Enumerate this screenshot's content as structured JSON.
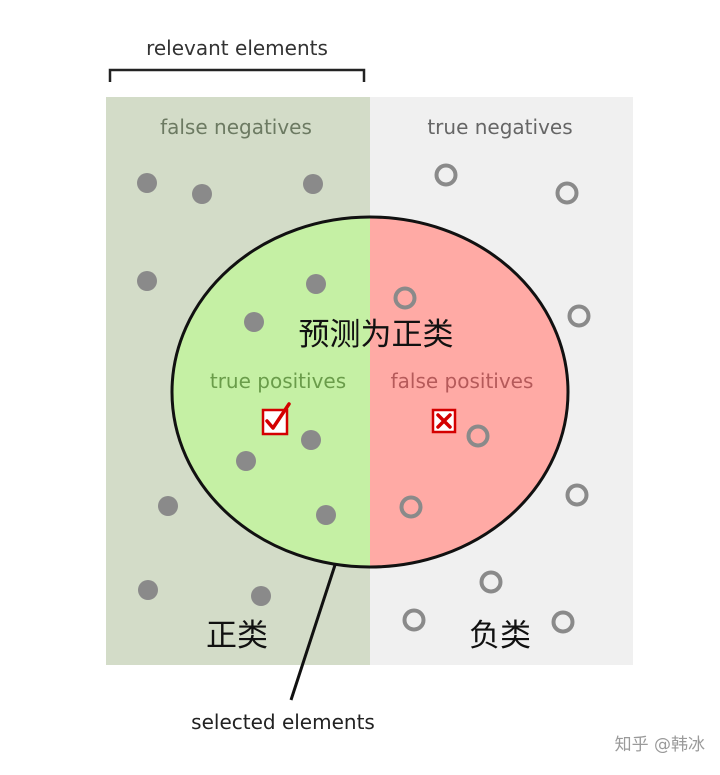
{
  "labels": {
    "relevant": "relevant elements",
    "false_negatives": "false negatives",
    "true_negatives": "true negatives",
    "predicted_positive": "预测为正类",
    "true_positives": "true positives",
    "false_positives": "false positives",
    "positive_class": "正类",
    "negative_class": "负类",
    "selected": "selected elements",
    "watermark": "知乎 @韩冰"
  },
  "colors": {
    "relevant_bg": "#d3dcc8",
    "irrelevant_bg": "#f0f0f0",
    "selected_relevant": "#c5f0a4",
    "selected_irrelevant": "#ffaaa5",
    "dot": "#8a8a8a",
    "mark_red": "#d40000",
    "fn_text": "#6c7a62",
    "tn_text": "#666666",
    "tp_text": "#6a9c4a",
    "fp_text": "#b55a5a"
  },
  "icons": {
    "tp": "checkbox-check-icon",
    "fp": "checkbox-x-icon"
  }
}
